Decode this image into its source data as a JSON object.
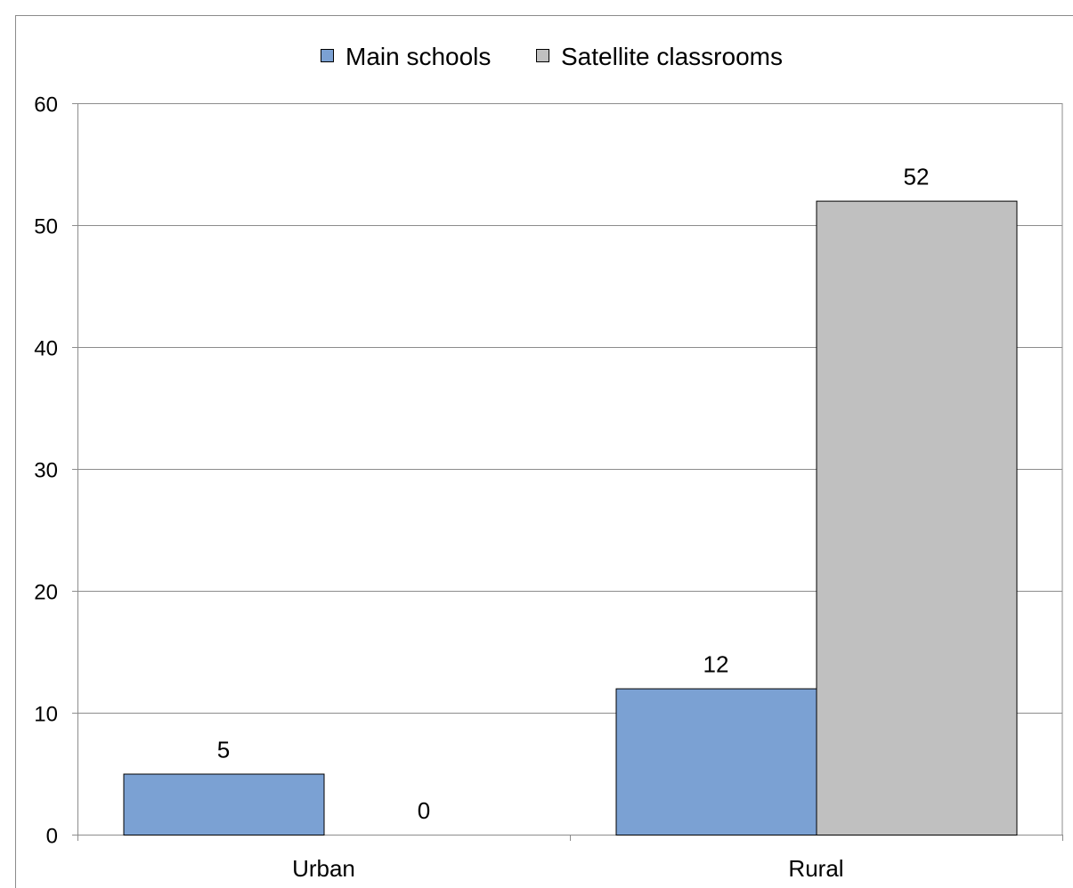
{
  "chart_data": {
    "type": "bar",
    "title": "",
    "xlabel": "",
    "ylabel": "",
    "categories": [
      "Urban",
      "Rural"
    ],
    "series": [
      {
        "name": "Main schools",
        "values": [
          5,
          12
        ],
        "color": "#7ba1d3"
      },
      {
        "name": "Satellite classrooms",
        "values": [
          0,
          52
        ],
        "color": "#c0c0c0"
      }
    ],
    "ylim": [
      0,
      60
    ],
    "yticks": [
      "0",
      "10",
      "20",
      "30",
      "40",
      "50",
      "60"
    ],
    "data_labels": [
      [
        "5",
        "12"
      ],
      [
        "0",
        "52"
      ]
    ],
    "grid": true,
    "legend_position": "top"
  }
}
